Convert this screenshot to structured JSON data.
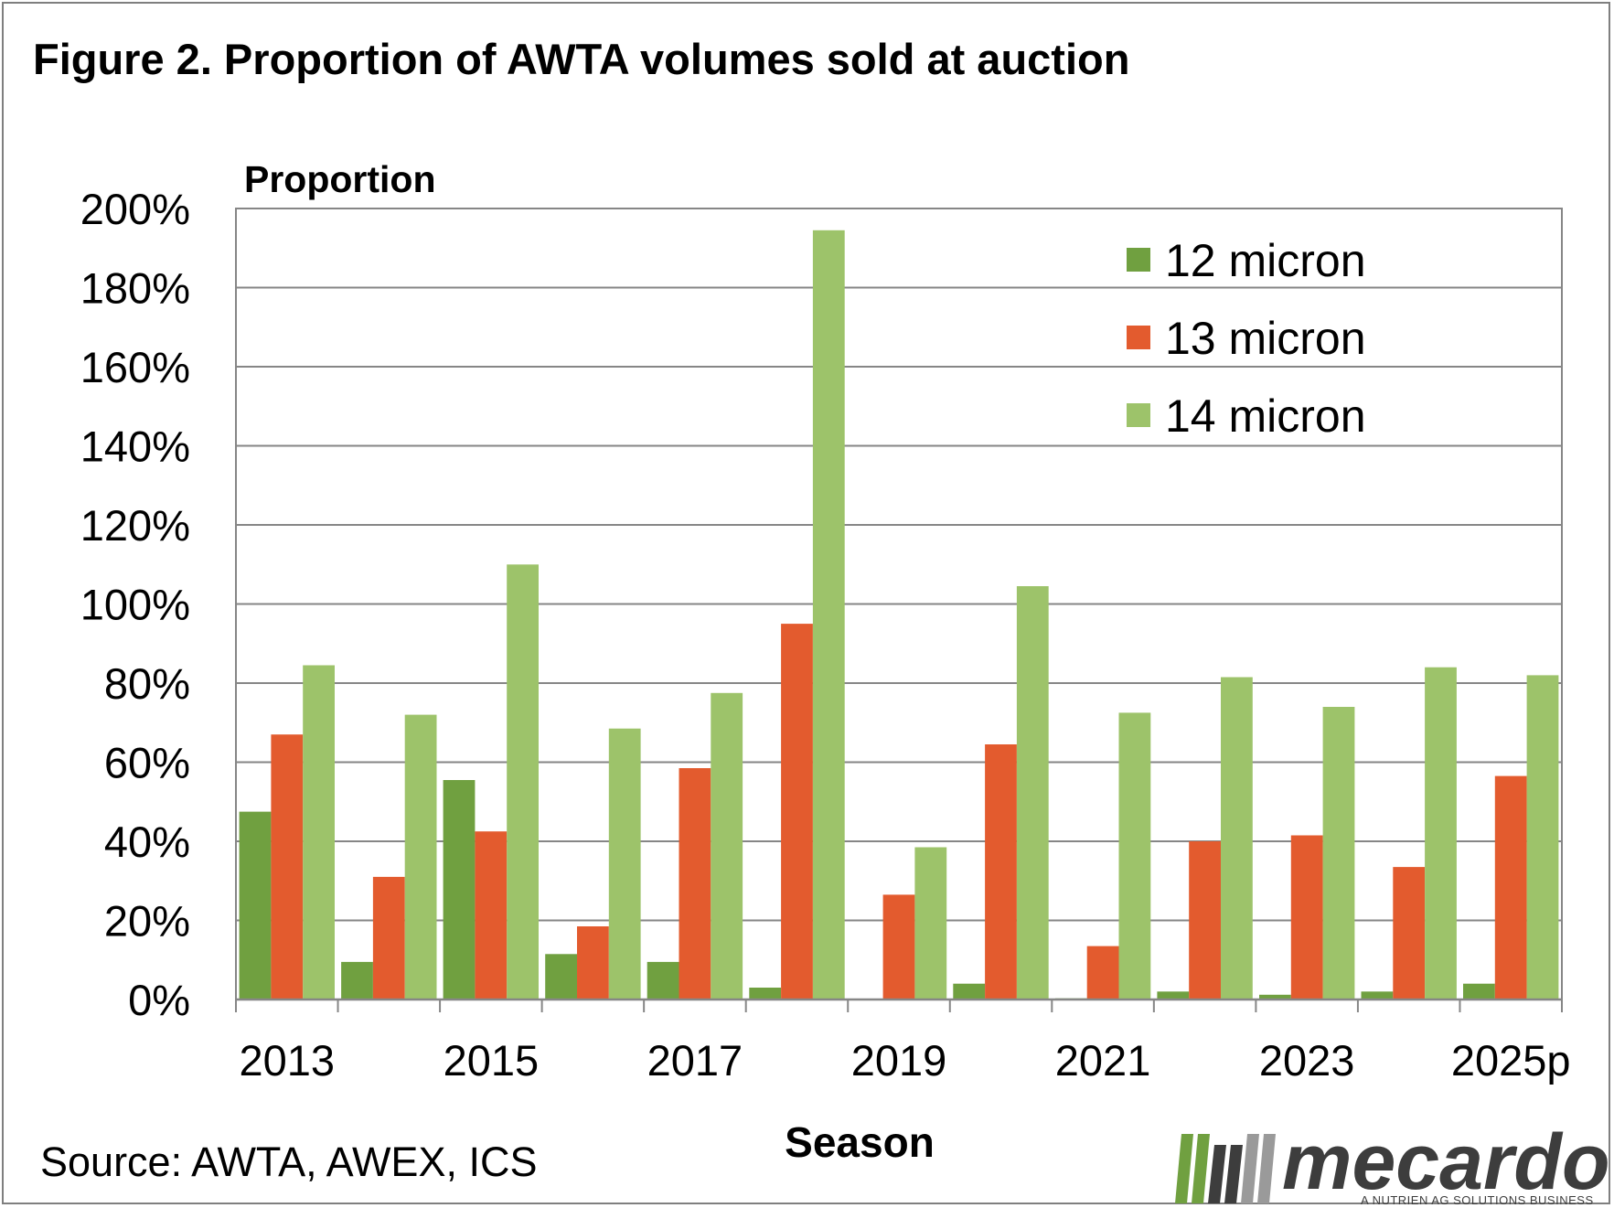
{
  "chart_data": {
    "type": "bar",
    "title": "Figure 2. Proportion of AWTA volumes sold at auction",
    "ylabel": "Proportion",
    "xlabel": "Season",
    "ylim": [
      0,
      200
    ],
    "y_ticks": [
      "0%",
      "20%",
      "40%",
      "60%",
      "80%",
      "100%",
      "120%",
      "140%",
      "160%",
      "180%",
      "200%"
    ],
    "categories": [
      "2013",
      "2014",
      "2015",
      "2016",
      "2017",
      "2018",
      "2019",
      "2020",
      "2021",
      "2022",
      "2023",
      "2024",
      "2025p"
    ],
    "x_tick_labels": [
      "2013",
      "",
      "2015",
      "",
      "2017",
      "",
      "2019",
      "",
      "2021",
      "",
      "2023",
      "",
      "2025p"
    ],
    "series": [
      {
        "name": "12 micron",
        "color": "#70a040",
        "values": [
          47.5,
          9.5,
          55.5,
          11.5,
          9.5,
          3,
          0,
          4,
          0.3,
          2,
          1.2,
          2,
          4
        ]
      },
      {
        "name": "13 micron",
        "color": "#e35b2e",
        "values": [
          67,
          31,
          42.5,
          18.5,
          58.5,
          95,
          26.5,
          64.5,
          13.5,
          40,
          41.5,
          33.5,
          56.5
        ]
      },
      {
        "name": "14 micron",
        "color": "#9dc36a",
        "values": [
          84.5,
          72,
          110,
          68.5,
          77.5,
          194.5,
          38.5,
          104.5,
          72.5,
          81.5,
          74,
          84,
          82
        ]
      }
    ],
    "grid": true,
    "legend": "top-right"
  },
  "source": "Source: AWTA, AWEX, ICS",
  "logo": {
    "name": "mecardo",
    "tagline": "A NUTRIEN AG SOLUTIONS BUSINESS",
    "icon": "mecardo-bars-logo",
    "colors": [
      "#70a040",
      "#3d3d3d",
      "#9a9a9a"
    ]
  }
}
